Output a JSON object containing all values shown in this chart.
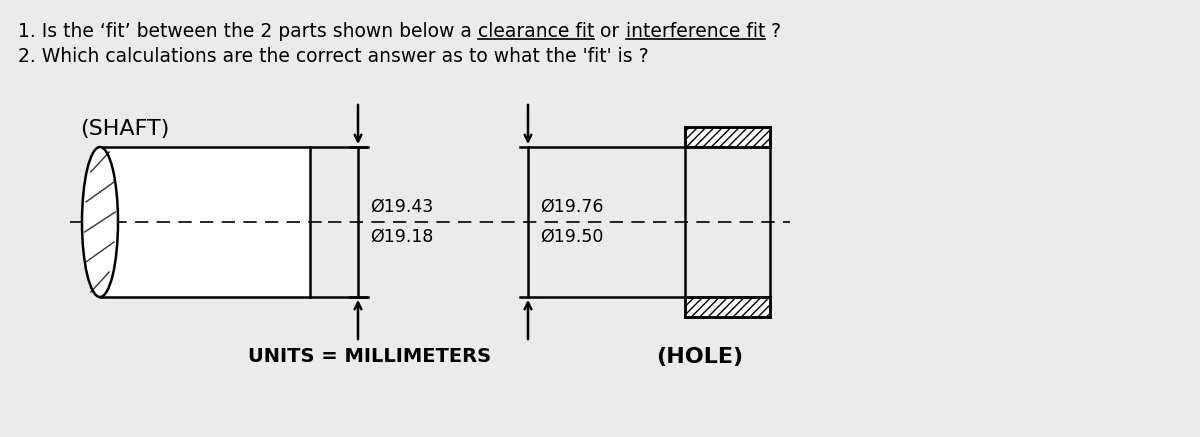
{
  "bg_color": "#ebebeb",
  "title_line1_normal": "1. Is the ‘fit’ between the 2 parts shown below a ",
  "title_line1_underline1": "clearance fit",
  "title_line1_mid": " or ",
  "title_line1_underline2": "interference fit",
  "title_line1_end": " ?",
  "title_line2": "2. Which calculations are the correct answer as to what the 'fit' is ?",
  "shaft_label": "(SHAFT)",
  "hole_label": "(HOLE)",
  "units_label": "UNITS = MILLIMETERS",
  "shaft_dim_upper": "19.43",
  "shaft_dim_lower": "19.18",
  "hole_dim_upper": "19.76",
  "hole_dim_lower": "19.50",
  "phi_symbol": "Ø",
  "line_color": "#000000",
  "text_color": "#000000",
  "hatch_pattern": "////",
  "text_fontsize": 13.5,
  "dim_fontsize": 12.5,
  "label_fontsize": 16
}
